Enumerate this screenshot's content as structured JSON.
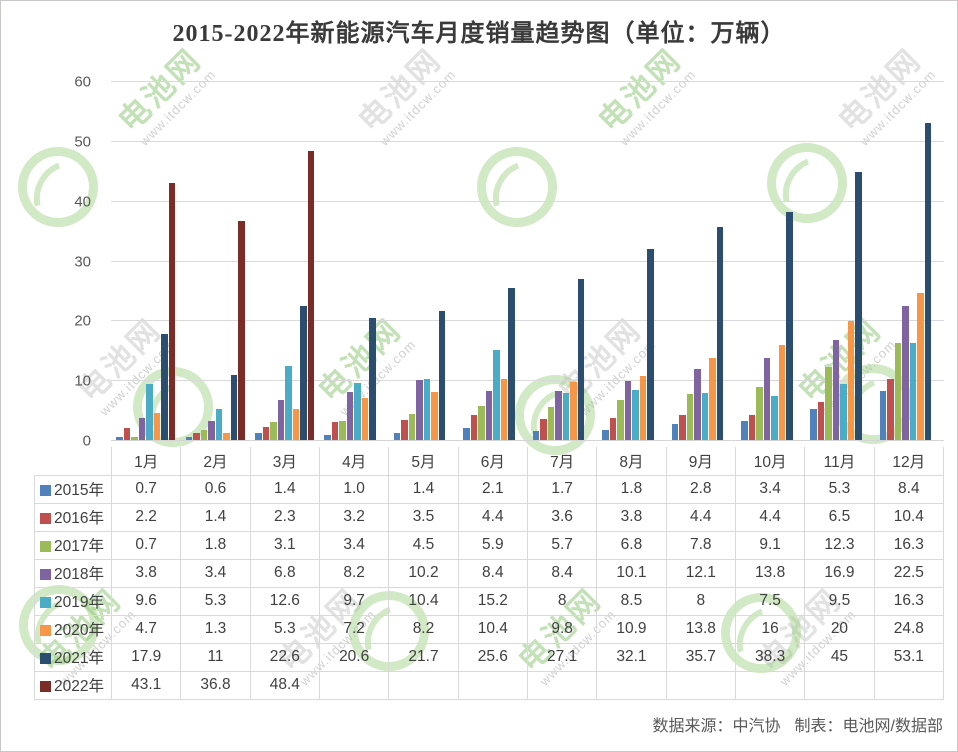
{
  "title": "2015-2022年新能源汽车月度销量趋势图（单位：万辆）",
  "watermark": {
    "brand": "电池网",
    "url": "www.itdcw.com"
  },
  "footer": {
    "source": "数据来源：中汽协",
    "maker": "制表：电池网/数据部"
  },
  "chart_data": {
    "type": "bar",
    "title": "2015-2022年新能源汽车月度销量趋势图（单位：万辆）",
    "unit": "万辆",
    "categories": [
      "1月",
      "2月",
      "3月",
      "4月",
      "5月",
      "6月",
      "7月",
      "8月",
      "9月",
      "10月",
      "11月",
      "12月"
    ],
    "series": [
      {
        "name": "2015年",
        "color": "#4F81BD",
        "values": [
          "0.7",
          "0.6",
          "1.4",
          "1.0",
          "1.4",
          "2.1",
          "1.7",
          "1.8",
          "2.8",
          "3.4",
          "5.3",
          "8.4"
        ]
      },
      {
        "name": "2016年",
        "color": "#C0504D",
        "values": [
          "2.2",
          "1.4",
          "2.3",
          "3.2",
          "3.5",
          "4.4",
          "3.6",
          "3.8",
          "4.4",
          "4.4",
          "6.5",
          "10.4"
        ]
      },
      {
        "name": "2017年",
        "color": "#9BBB59",
        "values": [
          "0.7",
          "1.8",
          "3.1",
          "3.4",
          "4.5",
          "5.9",
          "5.7",
          "6.8",
          "7.8",
          "9.1",
          "12.3",
          "16.3"
        ]
      },
      {
        "name": "2018年",
        "color": "#8064A2",
        "values": [
          "3.8",
          "3.4",
          "6.8",
          "8.2",
          "10.2",
          "8.4",
          "8.4",
          "10.1",
          "12.1",
          "13.8",
          "16.9",
          "22.5"
        ]
      },
      {
        "name": "2019年",
        "color": "#4BACC6",
        "values": [
          "9.6",
          "5.3",
          "12.6",
          "9.7",
          "10.4",
          "15.2",
          "8",
          "8.5",
          "8",
          "7.5",
          "9.5",
          "16.3"
        ]
      },
      {
        "name": "2020年",
        "color": "#F79646",
        "values": [
          "4.7",
          "1.3",
          "5.3",
          "7.2",
          "8.2",
          "10.4",
          "9.8",
          "10.9",
          "13.8",
          "16",
          "20",
          "24.8"
        ]
      },
      {
        "name": "2021年",
        "color": "#2B4D6F",
        "values": [
          "17.9",
          "11",
          "22.6",
          "20.6",
          "21.7",
          "25.6",
          "27.1",
          "32.1",
          "35.7",
          "38.3",
          "45",
          "53.1"
        ]
      },
      {
        "name": "2022年",
        "color": "#7B2C26",
        "values": [
          "43.1",
          "36.8",
          "48.4",
          "",
          "",
          "",
          "",
          "",
          "",
          "",
          "",
          ""
        ]
      }
    ],
    "ylim": [
      0,
      60
    ],
    "yticks": [
      0,
      10,
      20,
      30,
      40,
      50,
      60
    ],
    "grid": true,
    "legend_position": "table-left-column",
    "xlabel": "",
    "ylabel": ""
  }
}
